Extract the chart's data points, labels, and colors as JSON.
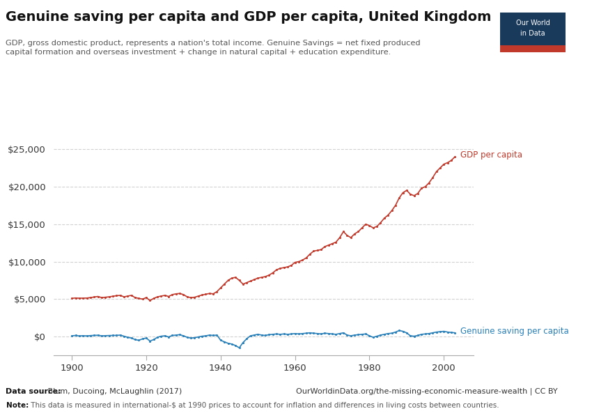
{
  "title": "Genuine saving per capita and GDP per capita, United Kingdom",
  "subtitle": "GDP, gross domestic product, represents a nation's total income. Genuine Savings = net fixed produced\ncapital formation and overseas investment + change in natural capital + education expenditure.",
  "datasource_bold": "Data source:",
  "datasource_rest": " Blum, Ducoing, McLaughlin (2017)",
  "url": "OurWorldinData.org/the-missing-economic-measure-wealth | CC BY",
  "note_bold": "Note:",
  "note_rest": " This data is measured in international-$ at 1990 prices to account for inflation and differences in living costs between countries.",
  "xlim": [
    1895,
    2008
  ],
  "ylim": [
    -2500,
    26500
  ],
  "yticks": [
    0,
    5000,
    10000,
    15000,
    20000,
    25000
  ],
  "xticks": [
    1900,
    1920,
    1940,
    1960,
    1980,
    2000
  ],
  "gdp_color": "#C0392B",
  "saving_color": "#2980B9",
  "background_color": "#ffffff",
  "grid_color": "#cccccc",
  "logo_bg": "#1a3a5c",
  "logo_red": "#c0392b",
  "gdp_label": "GDP per capita",
  "saving_label": "Genuine saving per capita",
  "gdp_years": [
    1900,
    1901,
    1902,
    1903,
    1904,
    1905,
    1906,
    1907,
    1908,
    1909,
    1910,
    1911,
    1912,
    1913,
    1914,
    1915,
    1916,
    1917,
    1918,
    1919,
    1920,
    1921,
    1922,
    1923,
    1924,
    1925,
    1926,
    1927,
    1928,
    1929,
    1930,
    1931,
    1932,
    1933,
    1934,
    1935,
    1936,
    1937,
    1938,
    1939,
    1940,
    1941,
    1942,
    1943,
    1944,
    1945,
    1946,
    1947,
    1948,
    1949,
    1950,
    1951,
    1952,
    1953,
    1954,
    1955,
    1956,
    1957,
    1958,
    1959,
    1960,
    1961,
    1962,
    1963,
    1964,
    1965,
    1966,
    1967,
    1968,
    1969,
    1970,
    1971,
    1972,
    1973,
    1974,
    1975,
    1976,
    1977,
    1978,
    1979,
    1980,
    1981,
    1982,
    1983,
    1984,
    1985,
    1986,
    1987,
    1988,
    1989,
    1990,
    1991,
    1992,
    1993,
    1994,
    1995,
    1996,
    1997,
    1998,
    1999,
    2000,
    2001,
    2002,
    2003
  ],
  "gdp_values": [
    5100,
    5150,
    5120,
    5130,
    5140,
    5200,
    5280,
    5350,
    5200,
    5250,
    5300,
    5380,
    5450,
    5500,
    5300,
    5400,
    5500,
    5200,
    5100,
    5000,
    5200,
    4800,
    5100,
    5300,
    5400,
    5500,
    5350,
    5600,
    5700,
    5750,
    5600,
    5300,
    5200,
    5250,
    5400,
    5550,
    5650,
    5750,
    5700,
    6000,
    6500,
    7000,
    7500,
    7800,
    7900,
    7500,
    7000,
    7200,
    7400,
    7600,
    7800,
    7900,
    8000,
    8200,
    8500,
    8900,
    9100,
    9200,
    9300,
    9500,
    9900,
    10000,
    10200,
    10500,
    11000,
    11400,
    11500,
    11600,
    12000,
    12200,
    12400,
    12600,
    13200,
    14000,
    13500,
    13200,
    13700,
    14000,
    14500,
    15000,
    14800,
    14500,
    14700,
    15200,
    15800,
    16200,
    16800,
    17500,
    18500,
    19200,
    19500,
    19000,
    18800,
    19100,
    19800,
    20000,
    20500,
    21200,
    22000,
    22500,
    23000,
    23200,
    23500,
    24000
  ],
  "saving_years": [
    1900,
    1901,
    1902,
    1903,
    1904,
    1905,
    1906,
    1907,
    1908,
    1909,
    1910,
    1911,
    1912,
    1913,
    1914,
    1915,
    1916,
    1917,
    1918,
    1919,
    1920,
    1921,
    1922,
    1923,
    1924,
    1925,
    1926,
    1927,
    1928,
    1929,
    1930,
    1931,
    1932,
    1933,
    1934,
    1935,
    1936,
    1937,
    1938,
    1939,
    1940,
    1941,
    1942,
    1943,
    1944,
    1945,
    1946,
    1947,
    1948,
    1949,
    1950,
    1951,
    1952,
    1953,
    1954,
    1955,
    1956,
    1957,
    1958,
    1959,
    1960,
    1961,
    1962,
    1963,
    1964,
    1965,
    1966,
    1967,
    1968,
    1969,
    1970,
    1971,
    1972,
    1973,
    1974,
    1975,
    1976,
    1977,
    1978,
    1979,
    1980,
    1981,
    1982,
    1983,
    1984,
    1985,
    1986,
    1987,
    1988,
    1989,
    1990,
    1991,
    1992,
    1993,
    1994,
    1995,
    1996,
    1997,
    1998,
    1999,
    2000,
    2001,
    2002,
    2003
  ],
  "saving_values": [
    100,
    150,
    80,
    120,
    90,
    130,
    160,
    180,
    100,
    120,
    140,
    150,
    160,
    200,
    50,
    -100,
    -200,
    -400,
    -500,
    -300,
    -200,
    -600,
    -400,
    -100,
    50,
    100,
    -50,
    150,
    200,
    250,
    100,
    -100,
    -200,
    -150,
    -50,
    50,
    100,
    200,
    150,
    200,
    -500,
    -700,
    -900,
    -1000,
    -1200,
    -1500,
    -800,
    -300,
    100,
    200,
    300,
    200,
    150,
    250,
    300,
    350,
    300,
    350,
    300,
    350,
    400,
    350,
    400,
    450,
    500,
    450,
    400,
    350,
    450,
    400,
    350,
    300,
    400,
    500,
    200,
    100,
    200,
    250,
    300,
    350,
    100,
    -100,
    50,
    200,
    300,
    400,
    450,
    600,
    800,
    700,
    500,
    100,
    50,
    150,
    300,
    350,
    400,
    500,
    600,
    650,
    700,
    600,
    550,
    500
  ]
}
